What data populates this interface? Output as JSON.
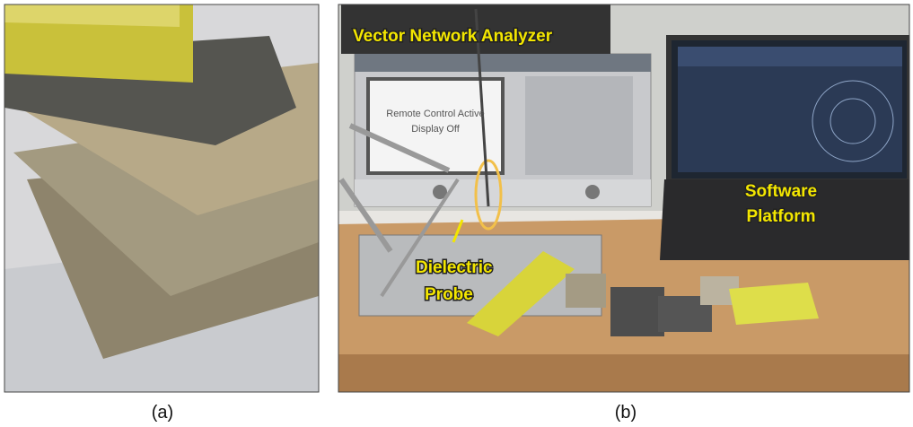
{
  "panels": [
    {
      "caption": "(a)"
    },
    {
      "caption": "(b)",
      "annotations": [
        "Vector Network Analyzer",
        "Dielectric",
        "Probe",
        "Software",
        "Platform"
      ],
      "screen_text": [
        "Remote Control Active",
        "Display Off"
      ]
    }
  ]
}
